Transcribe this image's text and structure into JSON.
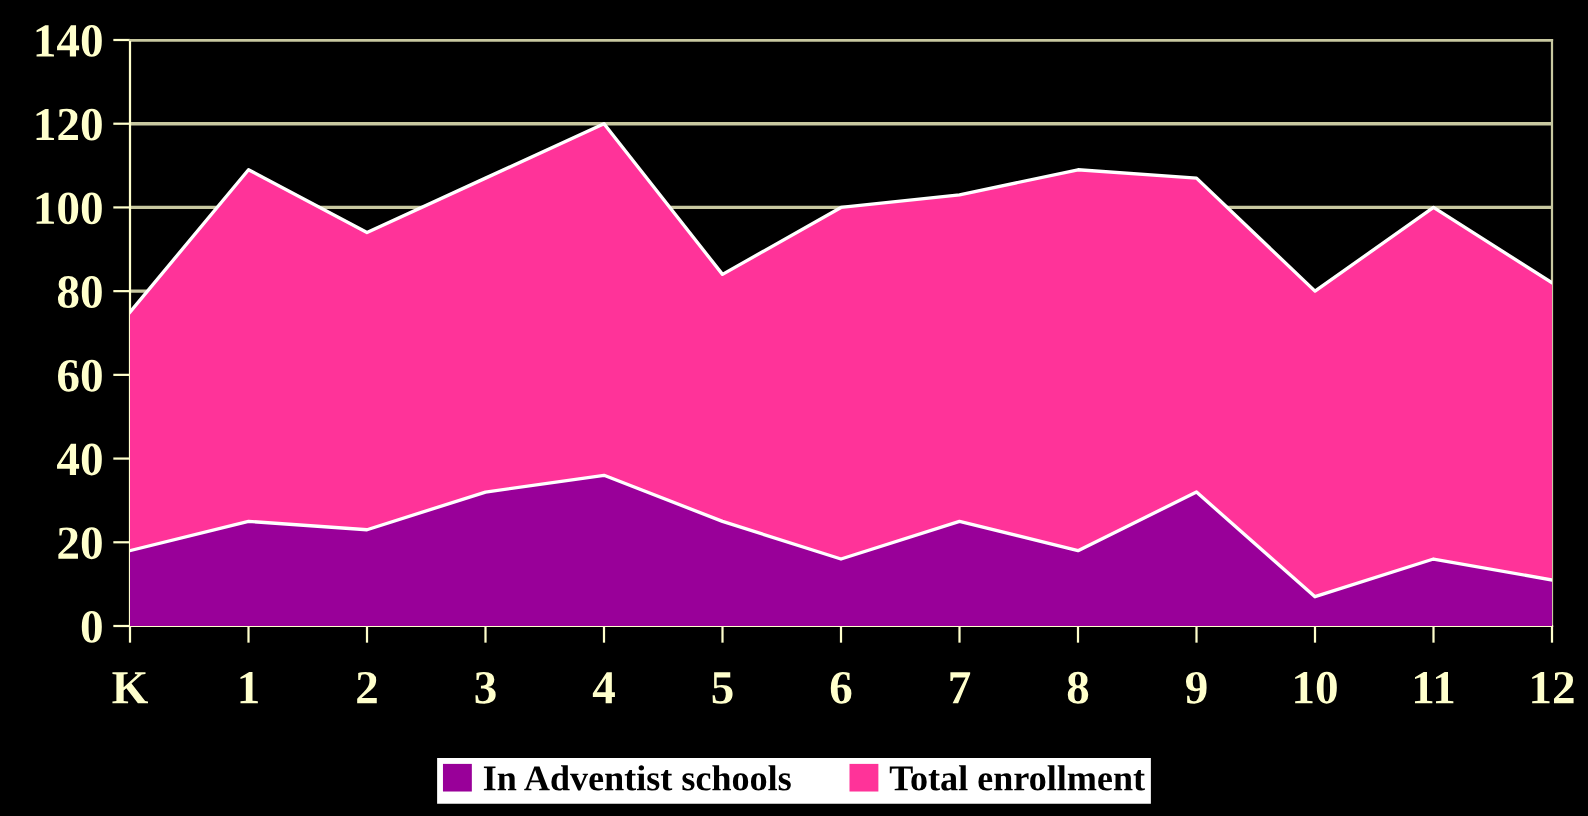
{
  "chart_data": {
    "type": "area",
    "categories": [
      "K",
      "1",
      "2",
      "3",
      "4",
      "5",
      "6",
      "7",
      "8",
      "9",
      "10",
      "11",
      "12"
    ],
    "series": [
      {
        "name": "In Adventist schools",
        "color": "#990099",
        "values": [
          18,
          25,
          23,
          32,
          36,
          25,
          16,
          25,
          18,
          32,
          7,
          16,
          11
        ]
      },
      {
        "name": "Total enrollment",
        "color": "#ff3399",
        "values": [
          75,
          109,
          94,
          107,
          120,
          84,
          100,
          103,
          109,
          107,
          80,
          100,
          82
        ]
      }
    ],
    "ylim": [
      0,
      140
    ],
    "yticks": [
      0,
      20,
      40,
      60,
      80,
      100,
      120,
      140
    ],
    "grid": "y",
    "legend": "bottom"
  }
}
